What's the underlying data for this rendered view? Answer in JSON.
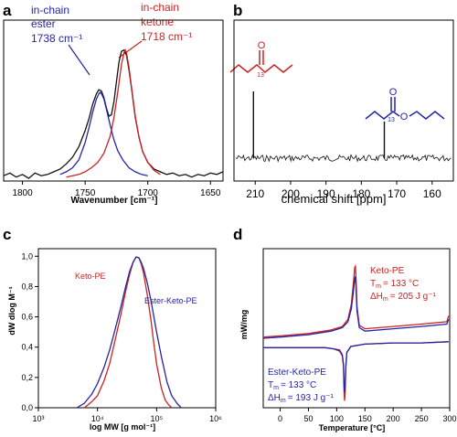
{
  "panels": {
    "a": {
      "letter": "a"
    },
    "b": {
      "letter": "b"
    },
    "c": {
      "letter": "c"
    },
    "d": {
      "letter": "d"
    }
  },
  "colors": {
    "ester": "#2424a8",
    "ketone": "#cc2222",
    "measured": "#111111",
    "axis": "#000000"
  },
  "chart_data": [
    {
      "panel": "a",
      "type": "line",
      "xlabel": "Wavenumber [cm⁻¹]",
      "ylabel": "",
      "xlim": [
        1815,
        1640
      ],
      "x_reversed": true,
      "x_ticks": [
        1800,
        1750,
        1700,
        1650
      ],
      "y_ticks_shown": false,
      "annotations": [
        {
          "lines": [
            "in-chain",
            "ester",
            "1738 cm⁻¹"
          ],
          "color": "#2424a8",
          "points_to_x": 1738
        },
        {
          "lines": [
            "in-chain",
            "ketone",
            "1718 cm⁻¹"
          ],
          "color": "#cc2222",
          "points_to_x": 1718
        }
      ],
      "series": [
        {
          "role": "measured",
          "color": "#111111",
          "x": [
            1815,
            1810,
            1805,
            1800,
            1795,
            1790,
            1785,
            1780,
            1775,
            1770,
            1765,
            1760,
            1755,
            1750,
            1747,
            1744,
            1741,
            1739,
            1737,
            1735,
            1733,
            1731,
            1729,
            1727,
            1725,
            1723,
            1721,
            1719,
            1717,
            1715,
            1713,
            1710,
            1707,
            1704,
            1700,
            1695,
            1690,
            1685,
            1680,
            1675,
            1670,
            1665,
            1660,
            1655,
            1650,
            1645,
            1640
          ],
          "y": [
            0.04,
            0.06,
            0.03,
            0.05,
            0.02,
            0.06,
            0.04,
            0.05,
            0.07,
            0.09,
            0.13,
            0.18,
            0.26,
            0.38,
            0.47,
            0.58,
            0.66,
            0.69,
            0.68,
            0.63,
            0.55,
            0.49,
            0.5,
            0.6,
            0.75,
            0.9,
            0.98,
            0.99,
            0.95,
            0.84,
            0.7,
            0.48,
            0.33,
            0.22,
            0.14,
            0.09,
            0.07,
            0.05,
            0.06,
            0.04,
            0.05,
            0.03,
            0.05,
            0.04,
            0.06,
            0.05,
            0.07
          ]
        },
        {
          "role": "ester fit",
          "color": "#2424a8",
          "x": [
            1770,
            1765,
            1760,
            1755,
            1750,
            1747,
            1744,
            1741,
            1739,
            1738,
            1737,
            1735,
            1733,
            1730,
            1727,
            1724,
            1720,
            1715,
            1710,
            1705,
            1700
          ],
          "y": [
            0.05,
            0.07,
            0.1,
            0.16,
            0.29,
            0.4,
            0.52,
            0.62,
            0.66,
            0.67,
            0.66,
            0.62,
            0.54,
            0.42,
            0.31,
            0.23,
            0.16,
            0.1,
            0.07,
            0.05,
            0.04
          ]
        },
        {
          "role": "ketone fit",
          "color": "#cc2222",
          "x": [
            1765,
            1760,
            1755,
            1750,
            1745,
            1740,
            1735,
            1730,
            1727,
            1724,
            1721,
            1719,
            1718,
            1717,
            1715,
            1713,
            1710,
            1707,
            1704,
            1700,
            1695,
            1690
          ],
          "y": [
            0.03,
            0.04,
            0.05,
            0.07,
            0.1,
            0.14,
            0.21,
            0.34,
            0.48,
            0.67,
            0.88,
            0.97,
            0.99,
            0.97,
            0.86,
            0.71,
            0.49,
            0.33,
            0.22,
            0.14,
            0.08,
            0.05
          ]
        }
      ]
    },
    {
      "panel": "b",
      "type": "line",
      "xlabel": "chemical shift [ppm]",
      "ylabel": "",
      "xlim": [
        216,
        154
      ],
      "x_reversed": true,
      "x_ticks": [
        210,
        200,
        190,
        180,
        170,
        160
      ],
      "y_ticks_shown": false,
      "peaks": [
        {
          "x": 210.5,
          "height": 1.0,
          "color": "#111111"
        },
        {
          "x": 173.5,
          "height": 0.55,
          "color": "#111111"
        }
      ],
      "structures": [
        {
          "color": "#cc2222",
          "atom_labels": [
            "O",
            "13"
          ],
          "near_x": 210.5
        },
        {
          "color": "#2424a8",
          "atom_labels": [
            "O",
            "13",
            "O"
          ],
          "near_x": 173.5
        }
      ]
    },
    {
      "panel": "c",
      "type": "line",
      "xlabel": "log MW [g mol⁻¹]",
      "ylabel": "dW dlog M⁻¹",
      "x_scale": "log",
      "xlim": [
        1000,
        1000000
      ],
      "ylim": [
        0,
        1.05
      ],
      "x_tick_labels": [
        "10³",
        "10⁴",
        "10⁵",
        "10⁶"
      ],
      "y_tick_labels": [
        "0,0",
        "0,2",
        "0,4",
        "0,6",
        "0,8",
        "1,0"
      ],
      "y_ticks": [
        0,
        0.2,
        0.4,
        0.6,
        0.8,
        1.0
      ],
      "series": [
        {
          "name": "Keto-PE",
          "color": "#cc2222",
          "x": [
            6000,
            8000,
            10000,
            13000,
            16000,
            20000,
            25000,
            30000,
            35000,
            40000,
            45000,
            50000,
            55000,
            60000,
            70000,
            80000,
            90000,
            100000,
            120000,
            140000,
            160000,
            180000
          ],
          "y": [
            0.0,
            0.04,
            0.08,
            0.18,
            0.29,
            0.45,
            0.62,
            0.77,
            0.88,
            0.96,
            0.995,
            0.99,
            0.95,
            0.89,
            0.74,
            0.58,
            0.42,
            0.29,
            0.13,
            0.05,
            0.02,
            0.0
          ]
        },
        {
          "name": "Ester-Keto-PE",
          "color": "#2424a8",
          "x": [
            4500,
            6000,
            8000,
            10000,
            13000,
            16000,
            20000,
            25000,
            30000,
            35000,
            40000,
            45000,
            50000,
            55000,
            60000,
            70000,
            80000,
            100000,
            120000,
            150000,
            180000,
            220000,
            260000
          ],
          "y": [
            0.0,
            0.03,
            0.09,
            0.16,
            0.27,
            0.38,
            0.52,
            0.67,
            0.8,
            0.9,
            0.96,
            0.995,
            0.99,
            0.96,
            0.92,
            0.82,
            0.71,
            0.5,
            0.34,
            0.17,
            0.08,
            0.03,
            0.0
          ]
        }
      ]
    },
    {
      "panel": "d",
      "type": "line",
      "xlabel": "Temperature [°C]",
      "ylabel": "mW/mg",
      "xlim": [
        -30,
        300
      ],
      "x_ticks": [
        0,
        50,
        100,
        150,
        200,
        250,
        300
      ],
      "y_ticks_shown": false,
      "legend": [
        {
          "name": "Keto-PE",
          "tm_label": "T",
          "tm_sub": "m",
          "tm_value": "= 133 °C",
          "dh_label": "ΔH",
          "dh_sub": "m",
          "dh_value": "= 205 J g⁻¹",
          "color": "#cc2222"
        },
        {
          "name": "Ester-Keto-PE",
          "tm_label": "T",
          "tm_sub": "m",
          "tm_value": "= 133 °C",
          "dh_label": "ΔH",
          "dh_sub": "m",
          "dh_value": "= 193 J g⁻¹",
          "color": "#2424a8"
        }
      ],
      "series": [
        {
          "name": "Keto-PE heating",
          "color": "#cc2222",
          "x": [
            -30,
            0,
            50,
            90,
            110,
            120,
            126,
            130,
            132,
            133,
            134,
            136,
            140,
            150,
            200,
            250,
            295,
            298
          ],
          "y": [
            0.4,
            0.41,
            0.43,
            0.46,
            0.49,
            0.55,
            0.68,
            0.88,
            0.99,
            1.0,
            0.92,
            0.66,
            0.5,
            0.47,
            0.49,
            0.51,
            0.53,
            0.58
          ]
        },
        {
          "name": "Ester-Keto-PE heating",
          "color": "#2424a8",
          "x": [
            -30,
            0,
            50,
            90,
            110,
            120,
            126,
            130,
            132,
            133,
            134,
            136,
            140,
            150,
            200,
            250,
            295,
            298
          ],
          "y": [
            0.39,
            0.4,
            0.42,
            0.45,
            0.48,
            0.53,
            0.64,
            0.8,
            0.9,
            0.91,
            0.84,
            0.62,
            0.48,
            0.45,
            0.47,
            0.49,
            0.51,
            0.55
          ]
        },
        {
          "name": "Keto-PE cooling",
          "color": "#cc2222",
          "x": [
            298,
            250,
            200,
            150,
            125,
            118,
            116,
            115,
            114,
            113,
            112,
            110,
            105,
            95,
            80,
            50,
            0,
            -30
          ],
          "y": [
            0.36,
            0.35,
            0.35,
            0.34,
            0.32,
            0.27,
            0.13,
            -0.08,
            -0.14,
            -0.06,
            0.15,
            0.24,
            0.28,
            0.3,
            0.31,
            0.31,
            0.31,
            0.31
          ]
        },
        {
          "name": "Ester-Keto-PE cooling",
          "color": "#2424a8",
          "x": [
            298,
            250,
            200,
            150,
            125,
            118,
            116,
            115,
            114,
            113,
            112,
            110,
            105,
            95,
            80,
            50,
            0,
            -30
          ],
          "y": [
            0.36,
            0.35,
            0.35,
            0.34,
            0.32,
            0.27,
            0.15,
            -0.02,
            -0.07,
            0.0,
            0.17,
            0.25,
            0.29,
            0.3,
            0.31,
            0.31,
            0.31,
            0.31
          ]
        }
      ]
    }
  ]
}
